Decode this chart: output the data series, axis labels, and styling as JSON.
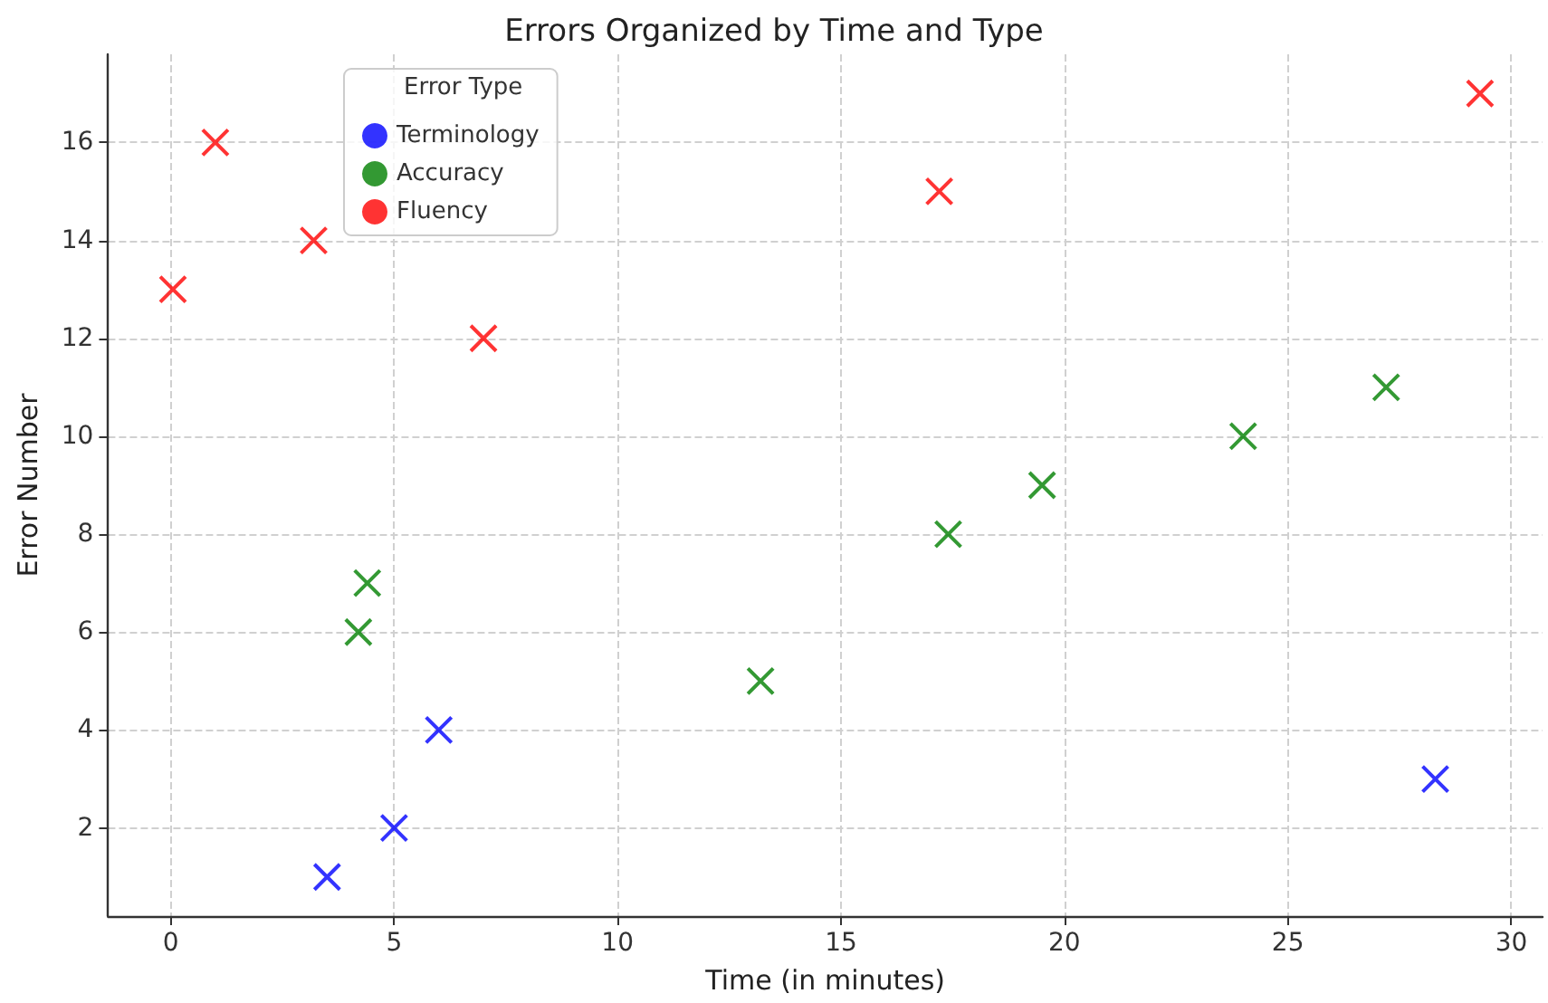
{
  "chart_data": {
    "type": "scatter",
    "title": "Errors Organized by Time and Type",
    "xlabel": "Time (in minutes)",
    "ylabel": "Error Number",
    "legend_title": "Error Type",
    "series": [
      {
        "name": "Terminology",
        "color": "#0000ff",
        "x": [
          3.5,
          5.0,
          6.0,
          28.3
        ],
        "values": [
          1,
          2,
          4,
          3
        ]
      },
      {
        "name": "Accuracy",
        "color": "#008000",
        "x": [
          4.2,
          4.4,
          13.2,
          17.4,
          19.5,
          24.0,
          27.2
        ],
        "values": [
          6,
          7,
          5,
          8,
          9,
          10,
          11
        ]
      },
      {
        "name": "Fluency",
        "color": "#ff0000",
        "x": [
          0.05,
          1.0,
          3.2,
          7.0,
          17.2,
          29.3
        ],
        "values": [
          13,
          16,
          14,
          12,
          15,
          17
        ]
      }
    ],
    "xlim": [
      -1.4,
      30.7
    ],
    "xticks": [
      0,
      5,
      10,
      15,
      20,
      25,
      30
    ],
    "ylim": [
      0.2,
      17.8
    ],
    "yticks": [
      2,
      4,
      6,
      8,
      10,
      12,
      14,
      16
    ],
    "grid": true,
    "legend": "top left",
    "marker": "cross"
  }
}
